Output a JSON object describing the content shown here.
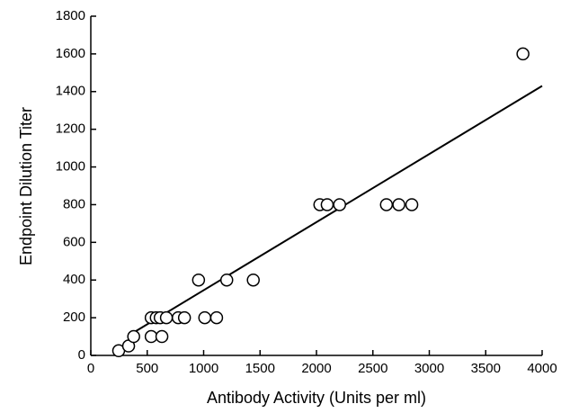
{
  "chart_data": {
    "type": "scatter",
    "xlabel": "Antibody Activity (Units per ml)",
    "ylabel": "Endpoint Dilution Titer",
    "x": [
      247,
      335,
      380,
      535,
      535,
      580,
      630,
      615,
      670,
      775,
      830,
      955,
      1010,
      1115,
      1205,
      1440,
      2030,
      2095,
      2205,
      2620,
      2730,
      2845,
      3830
    ],
    "y": [
      25,
      50,
      100,
      200,
      100,
      200,
      100,
      200,
      200,
      200,
      200,
      400,
      200,
      200,
      400,
      400,
      800,
      800,
      800,
      800,
      800,
      800,
      1600
    ],
    "trendline": {
      "x": [
        375,
        4000
      ],
      "y": [
        120,
        1430
      ]
    },
    "color": "#000000",
    "xlim": [
      0,
      4000
    ],
    "xticks": [
      0,
      500,
      1000,
      1500,
      2000,
      2500,
      3000,
      3500,
      4000
    ],
    "ylim": [
      0,
      1800
    ],
    "yticks": [
      0,
      200,
      400,
      600,
      800,
      1000,
      1200,
      1400,
      1600,
      1800
    ]
  }
}
